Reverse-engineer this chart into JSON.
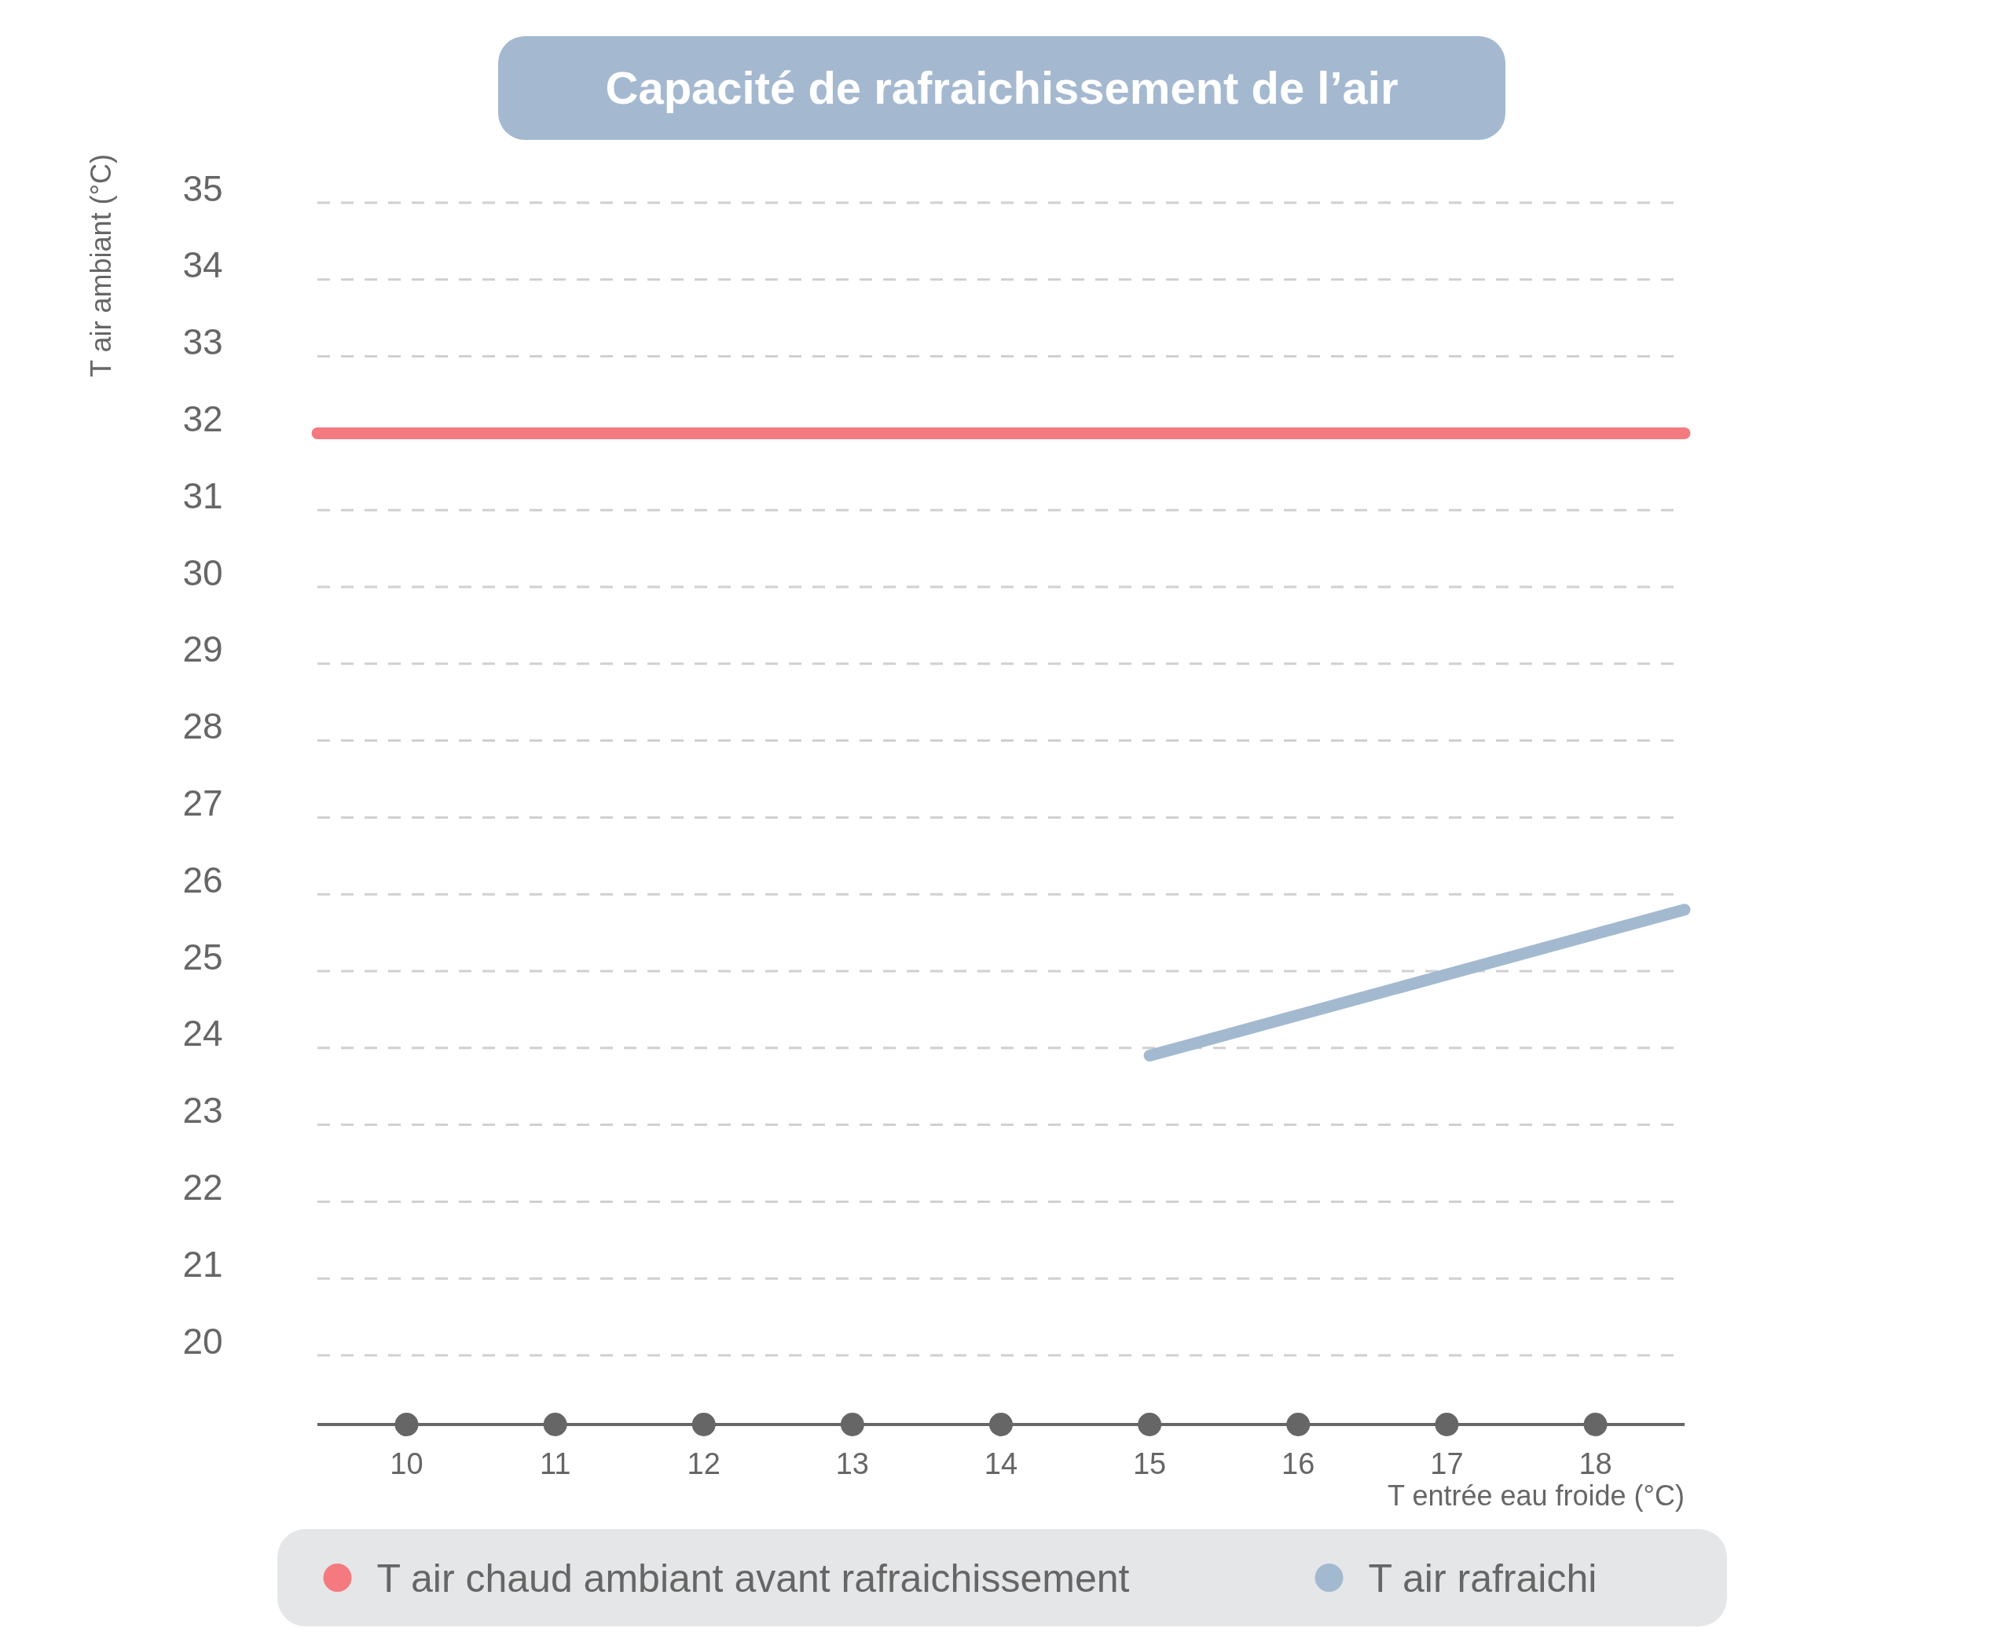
{
  "chart_data": {
    "type": "line",
    "title": "Capacité de rafraichissement de l’air",
    "xlabel": "T entrée eau froide (°C)",
    "ylabel": "T air ambiant (°C)",
    "xlim": [
      9.4,
      18.6
    ],
    "xticks": [
      10,
      11,
      12,
      13,
      14,
      15,
      16,
      17,
      18
    ],
    "ylim": [
      19.1,
      35
    ],
    "yticks": [
      20,
      21,
      22,
      23,
      24,
      25,
      26,
      27,
      28,
      29,
      30,
      31,
      32,
      33,
      34,
      35
    ],
    "grid": "y",
    "legend": "bottom",
    "marker": "none",
    "line_style": "solid",
    "series": [
      {
        "name": "T air chaud ambiant avant rafraichissement",
        "color": "#f47a80",
        "x": [
          9.4,
          18.6
        ],
        "values": [
          32,
          32
        ]
      },
      {
        "name": "T air rafraichi",
        "color": "#a3b9d0",
        "x": [
          15,
          18.6
        ],
        "values": [
          23.9,
          25.8
        ]
      }
    ]
  }
}
